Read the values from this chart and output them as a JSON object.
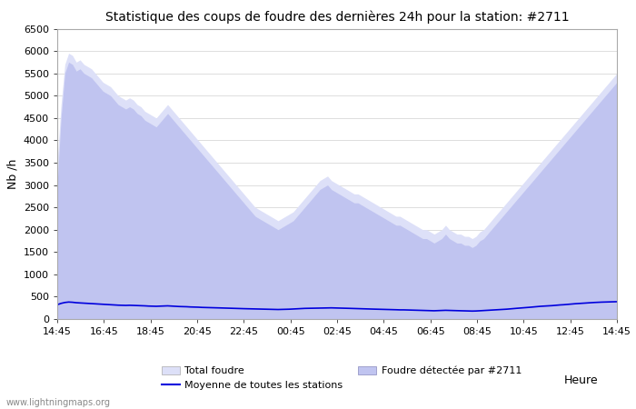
{
  "title": "Statistique des coups de foudre des dernières 24h pour la station: #2711",
  "xlabel": "Heure",
  "ylabel": "Nb /h",
  "watermark": "www.lightningmaps.org",
  "x_ticks": [
    "14:45",
    "16:45",
    "18:45",
    "20:45",
    "22:45",
    "00:45",
    "02:45",
    "04:45",
    "06:45",
    "08:45",
    "10:45",
    "12:45",
    "14:45"
  ],
  "ylim": [
    0,
    6500
  ],
  "y_ticks": [
    0,
    500,
    1000,
    1500,
    2000,
    2500,
    3000,
    3500,
    4000,
    4500,
    5000,
    5500,
    6000,
    6500
  ],
  "bg_color": "#ffffff",
  "plot_bg_color": "#ffffff",
  "grid_color": "#d8d8d8",
  "total_foudre_color": "#dde0f8",
  "total_foudre_edge_color": "#dde0f8",
  "detected_color": "#c0c4f0",
  "detected_edge_color": "#c0c4f0",
  "mean_line_color": "#0000dd",
  "legend_labels": [
    "Total foudre",
    "Moyenne de toutes les stations",
    "Foudre détectée par #2711"
  ],
  "total_foudre_values": [
    3500,
    4800,
    5700,
    5950,
    5900,
    5750,
    5800,
    5700,
    5650,
    5600,
    5500,
    5400,
    5300,
    5250,
    5200,
    5100,
    5000,
    4950,
    4900,
    4950,
    4900,
    4800,
    4750,
    4650,
    4600,
    4550,
    4500,
    4600,
    4700,
    4800,
    4700,
    4600,
    4500,
    4400,
    4300,
    4200,
    4100,
    4000,
    3900,
    3800,
    3700,
    3600,
    3500,
    3400,
    3300,
    3200,
    3100,
    3000,
    2900,
    2800,
    2700,
    2600,
    2500,
    2450,
    2400,
    2350,
    2300,
    2250,
    2200,
    2250,
    2300,
    2350,
    2400,
    2500,
    2600,
    2700,
    2800,
    2900,
    3000,
    3100,
    3150,
    3200,
    3100,
    3050,
    3000,
    2950,
    2900,
    2850,
    2800,
    2800,
    2750,
    2700,
    2650,
    2600,
    2550,
    2500,
    2450,
    2400,
    2350,
    2300,
    2300,
    2250,
    2200,
    2150,
    2100,
    2050,
    2000,
    2000,
    1950,
    1900,
    1950,
    2000,
    2100,
    2000,
    1950,
    1900,
    1900,
    1850,
    1850,
    1800,
    1850,
    1950,
    2000,
    2100,
    2200,
    2300,
    2400,
    2500,
    2600,
    2700,
    2800,
    2900,
    3000,
    3100,
    3200,
    3300,
    3400,
    3500,
    3600,
    3700,
    3800,
    3900,
    4000,
    4100,
    4200,
    4300,
    4400,
    4500,
    4600,
    4700,
    4800,
    4900,
    5000,
    5100,
    5200,
    5300,
    5400,
    5500
  ],
  "detected_values": [
    3000,
    4500,
    5500,
    5750,
    5700,
    5550,
    5600,
    5500,
    5450,
    5400,
    5300,
    5200,
    5100,
    5050,
    5000,
    4900,
    4800,
    4750,
    4700,
    4750,
    4700,
    4600,
    4550,
    4450,
    4400,
    4350,
    4300,
    4400,
    4500,
    4600,
    4500,
    4400,
    4300,
    4200,
    4100,
    4000,
    3900,
    3800,
    3700,
    3600,
    3500,
    3400,
    3300,
    3200,
    3100,
    3000,
    2900,
    2800,
    2700,
    2600,
    2500,
    2400,
    2300,
    2250,
    2200,
    2150,
    2100,
    2050,
    2000,
    2050,
    2100,
    2150,
    2200,
    2300,
    2400,
    2500,
    2600,
    2700,
    2800,
    2900,
    2950,
    3000,
    2900,
    2850,
    2800,
    2750,
    2700,
    2650,
    2600,
    2600,
    2550,
    2500,
    2450,
    2400,
    2350,
    2300,
    2250,
    2200,
    2150,
    2100,
    2100,
    2050,
    2000,
    1950,
    1900,
    1850,
    1800,
    1800,
    1750,
    1700,
    1750,
    1800,
    1900,
    1800,
    1750,
    1700,
    1700,
    1650,
    1650,
    1600,
    1650,
    1750,
    1800,
    1900,
    2000,
    2100,
    2200,
    2300,
    2400,
    2500,
    2600,
    2700,
    2800,
    2900,
    3000,
    3100,
    3200,
    3300,
    3400,
    3500,
    3600,
    3700,
    3800,
    3900,
    4000,
    4100,
    4200,
    4300,
    4400,
    4500,
    4600,
    4700,
    4800,
    4900,
    5000,
    5100,
    5200,
    5300
  ],
  "mean_values": [
    320,
    350,
    370,
    380,
    375,
    365,
    360,
    355,
    350,
    345,
    340,
    335,
    330,
    325,
    320,
    315,
    310,
    308,
    305,
    308,
    305,
    300,
    298,
    295,
    290,
    288,
    285,
    288,
    290,
    295,
    290,
    285,
    280,
    278,
    275,
    270,
    268,
    265,
    260,
    258,
    255,
    252,
    250,
    248,
    245,
    242,
    240,
    238,
    235,
    232,
    230,
    228,
    225,
    223,
    220,
    220,
    218,
    215,
    213,
    215,
    218,
    220,
    225,
    230,
    235,
    238,
    240,
    242,
    245,
    248,
    250,
    252,
    250,
    248,
    245,
    242,
    240,
    238,
    235,
    233,
    230,
    228,
    225,
    222,
    220,
    218,
    215,
    213,
    210,
    208,
    205,
    205,
    202,
    200,
    198,
    195,
    193,
    190,
    188,
    185,
    188,
    190,
    195,
    192,
    190,
    188,
    185,
    183,
    180,
    178,
    180,
    185,
    190,
    195,
    200,
    205,
    210,
    215,
    220,
    228,
    235,
    242,
    248,
    255,
    262,
    270,
    278,
    285,
    290,
    295,
    300,
    308,
    315,
    320,
    328,
    335,
    342,
    348,
    355,
    360,
    365,
    370,
    375,
    378,
    380,
    382,
    385,
    388
  ]
}
